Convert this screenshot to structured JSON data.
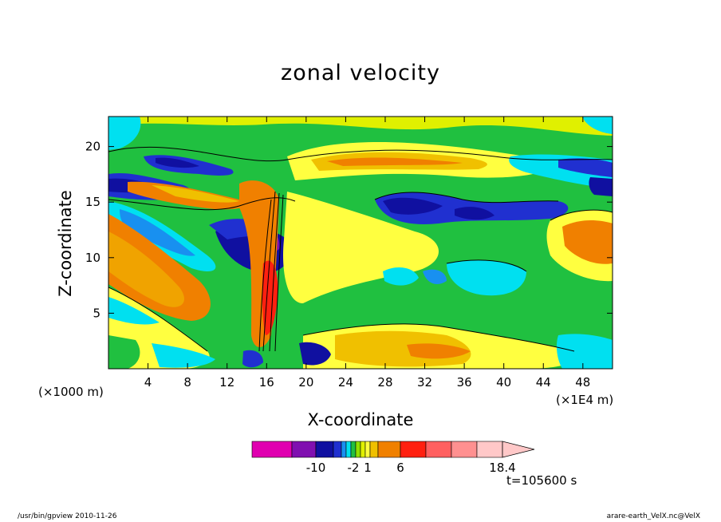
{
  "chart_data": {
    "type": "heatmap",
    "title": "zonal velocity",
    "xlabel": "X-coordinate",
    "ylabel": "Z-coordinate",
    "x_unit_label": "(×1000 m)",
    "x_scale_label": "(×1E4 m)",
    "xticks": [
      "4",
      "8",
      "12",
      "16",
      "20",
      "24",
      "28",
      "32",
      "36",
      "40",
      "44",
      "48"
    ],
    "xlim": [
      0,
      51
    ],
    "yticks": [
      "5",
      "10",
      "15",
      "20"
    ],
    "ylim": [
      0,
      22.7
    ],
    "colorbar": {
      "colors": [
        "#e000b0",
        "#8010b0",
        "#1010a0",
        "#2030d0",
        "#1890f0",
        "#00e0f0",
        "#20c040",
        "#90e000",
        "#e0f000",
        "#ffff40",
        "#f0c000",
        "#f08000",
        "#ff2010",
        "#ff6060",
        "#ff9090",
        "#ffc8c8"
      ],
      "tick_labels": [
        "-10",
        "-2",
        "1",
        "6",
        "18.4"
      ]
    },
    "time_label": "t=105600 s"
  },
  "footer": {
    "left": "/usr/bin/gpview   2010-11-26",
    "right": "arare-earth_VelX.nc@VelX"
  }
}
